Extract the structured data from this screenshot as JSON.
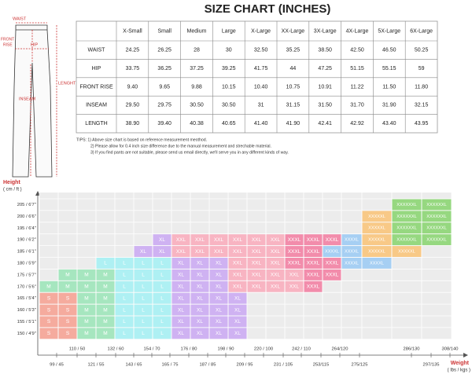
{
  "title": "SIZE CHART (INCHES)",
  "diagram_labels": {
    "waist": "WAIST",
    "hip": "HIP",
    "front_rise": [
      "FRONT",
      "RISE"
    ],
    "inseam": "INSEAM",
    "length": "LENGHT"
  },
  "table": {
    "header": [
      "X-Small",
      "Small",
      "Medium",
      "Large",
      "X-Large",
      "XX-Large",
      "3X-Large",
      "4X-Large",
      "5X-Large",
      "6X-Large"
    ],
    "rows": [
      [
        "WAIST",
        "24.25",
        "26.25",
        "28",
        "30",
        "32.50",
        "35.25",
        "38.50",
        "42.50",
        "46.50",
        "50.25"
      ],
      [
        "HIP",
        "33.75",
        "36.25",
        "37.25",
        "39.25",
        "41.75",
        "44",
        "47.25",
        "51.15",
        "55.15",
        "59"
      ],
      [
        "FRONT RISE",
        "9.40",
        "9.65",
        "9.88",
        "10.15",
        "10.40",
        "10.75",
        "10.91",
        "11.22",
        "11.50",
        "11.80"
      ],
      [
        "INSEAM",
        "29.50",
        "29.75",
        "30.50",
        "30.50",
        "31",
        "31.15",
        "31.50",
        "31.70",
        "31.90",
        "32.15"
      ],
      [
        "LENGTH",
        "38.90",
        "39.40",
        "40.38",
        "40.65",
        "41.40",
        "41.90",
        "42.41",
        "42.92",
        "43.40",
        "43.95"
      ]
    ]
  },
  "tips": [
    "TIPS: 1) Above size chart is based on reference measurement meothod.",
    "2) Please allow for 0.4 inch size difference due to the manual measurement and strechable material.",
    "3) If you find pants are not suitable, please send us email directly, we'll serve you in any different kinds of way."
  ],
  "size_grid": {
    "y_title": "Height",
    "y_unit": "( cm / ft )",
    "x_title": "Weight",
    "x_unit": "( lbs / kgs )",
    "heights": [
      "205 / 6'7''",
      "200 / 6'6''",
      "195 / 6'4''",
      "190 / 6'2''",
      "185 / 6'1''",
      "180 / 5'9''",
      "175 / 5'7''",
      "170 / 5'6''",
      "165 / 5'4''",
      "160 / 5'3''",
      "155 / 5'1''",
      "150 / 4'9''"
    ],
    "weights": [
      "99 / 45",
      "110 / 50",
      "121 / 55",
      "132 / 60",
      "143 / 65",
      "154 / 70",
      "165 / 75",
      "176 / 80",
      "187 / 85",
      "198 / 90",
      "209 / 95",
      "220 / 100",
      "231 / 105",
      "242 / 110",
      "253/115",
      "264/120",
      "275/125",
      "286/130",
      "297/135",
      "308/140"
    ],
    "colors": {
      "S": "#f5ab9e",
      "M": "#a6e6bf",
      "L": "#aef0f3",
      "XL": "#cfb2f2",
      "XXL": "#f8b4c2",
      "XXXL": "#f28cab",
      "XXXXL": "#a6cff3",
      "XXXXXL": "#f8c987",
      "XXXXXXL": "#96d880"
    },
    "rows": [
      [
        null,
        null,
        null,
        null,
        null,
        null,
        null,
        null,
        null,
        null,
        null,
        null,
        null,
        null,
        null,
        null,
        null,
        null,
        "XXXXXXL",
        "XXXXXXL"
      ],
      [
        null,
        null,
        null,
        null,
        null,
        null,
        null,
        null,
        null,
        null,
        null,
        null,
        null,
        null,
        null,
        null,
        null,
        "XXXXXL",
        "XXXXXXL",
        "XXXXXXL"
      ],
      [
        null,
        null,
        null,
        null,
        null,
        null,
        null,
        null,
        null,
        null,
        null,
        null,
        null,
        null,
        null,
        null,
        null,
        "XXXXXL",
        "XXXXXXL",
        "XXXXXXL"
      ],
      [
        null,
        null,
        null,
        null,
        null,
        null,
        "XL",
        "XXL",
        "XXL",
        "XXL",
        "XXL",
        "XXL",
        "XXL",
        "XXXL",
        "XXXL",
        "XXXL",
        "XXXXL",
        "XXXXXL",
        "XXXXXXL",
        "XXXXXXL"
      ],
      [
        null,
        null,
        null,
        null,
        null,
        "XL",
        "XL",
        "XXL",
        "XXL",
        "XXL",
        "XXL",
        "XXL",
        "XXL",
        "XXXL",
        "XXXL",
        "XXXXL",
        "XXXXL",
        "XXXXXL",
        "XXXXXL",
        null
      ],
      [
        null,
        null,
        null,
        "L",
        "L",
        "L",
        "L",
        "XL",
        "XL",
        "XL",
        "XXL",
        "XXL",
        "XXL",
        "XXXL",
        "XXXL",
        "XXXL",
        "XXXXL",
        "XXXXL",
        null,
        null
      ],
      [
        null,
        "M",
        "M",
        "M",
        "L",
        "L",
        "L",
        "XL",
        "XL",
        "XL",
        "XXL",
        "XXL",
        "XXL",
        "XXL",
        "XXXL",
        "XXXL",
        null,
        null,
        null,
        null
      ],
      [
        "M",
        "M",
        "M",
        "M",
        "L",
        "L",
        "L",
        "XL",
        "XL",
        "XL",
        "XXL",
        "XXL",
        "XXL",
        "XXL",
        "XXXL",
        null,
        null,
        null,
        null,
        null
      ],
      [
        "S",
        "S",
        "M",
        "M",
        "L",
        "L",
        "L",
        "XL",
        "XL",
        "XL",
        "XL",
        null,
        null,
        null,
        null,
        null,
        null,
        null,
        null,
        null
      ],
      [
        "S",
        "S",
        "M",
        "M",
        "L",
        "L",
        "L",
        "XL",
        "XL",
        "XL",
        "XL",
        null,
        null,
        null,
        null,
        null,
        null,
        null,
        null,
        null
      ],
      [
        "S",
        "S",
        "M",
        "M",
        "L",
        "L",
        "L",
        "XL",
        "XL",
        "XL",
        "XL",
        null,
        null,
        null,
        null,
        null,
        null,
        null,
        null,
        null
      ],
      [
        "S",
        "S",
        "M",
        "M",
        "L",
        "L",
        "L",
        "XL",
        "XL",
        "XL",
        "XL",
        null,
        null,
        null,
        null,
        null,
        null,
        null,
        null,
        null
      ]
    ]
  }
}
